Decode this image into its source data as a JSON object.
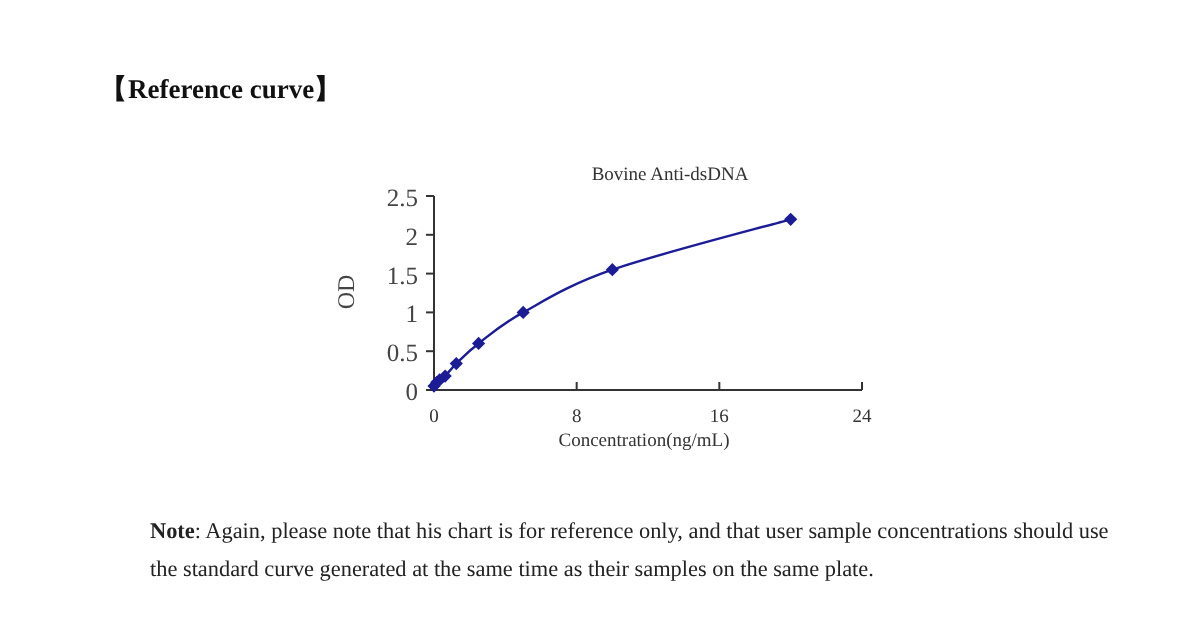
{
  "chart_data": {
    "type": "line",
    "title": "Bovine Anti-dsDNA",
    "xlabel": "Concentration(ng/mL)",
    "ylabel": "OD",
    "annotations": [
      "【Reference curve】",
      "**Note**: Again, please note that his chart is for reference only, and that user sample concentrations should use the standard curve generated at the same time as their samples on the same plate."
    ],
    "x": [
      0,
      0.156,
      0.312,
      0.625,
      1.25,
      2.5,
      5,
      10,
      20
    ],
    "series": [
      {
        "color": "#1c1c96",
        "values": [
          0.05,
          0.1,
          0.13,
          0.18,
          0.34,
          0.6,
          1.0,
          1.55,
          2.2
        ]
      }
    ],
    "xlim": [
      0,
      24
    ],
    "xticks": [
      0,
      8,
      16,
      24
    ],
    "ylim": [
      0,
      2.5
    ],
    "yticks": [
      0,
      0.5,
      1,
      1.5,
      2,
      2.5
    ],
    "marker": "diamond"
  }
}
